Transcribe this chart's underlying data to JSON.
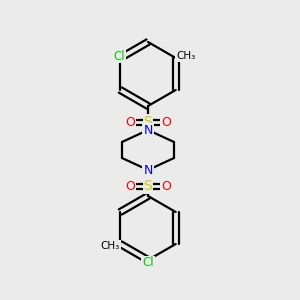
{
  "background_color": "#ebebeb",
  "atom_colors": {
    "N": "#0000ff",
    "O": "#ff0000",
    "S": "#cccc00",
    "Cl": "#00cc00",
    "C": "#000000"
  },
  "bond_color": "#000000",
  "bond_width": 1.6,
  "figsize": [
    3.0,
    3.0
  ],
  "dpi": 100
}
